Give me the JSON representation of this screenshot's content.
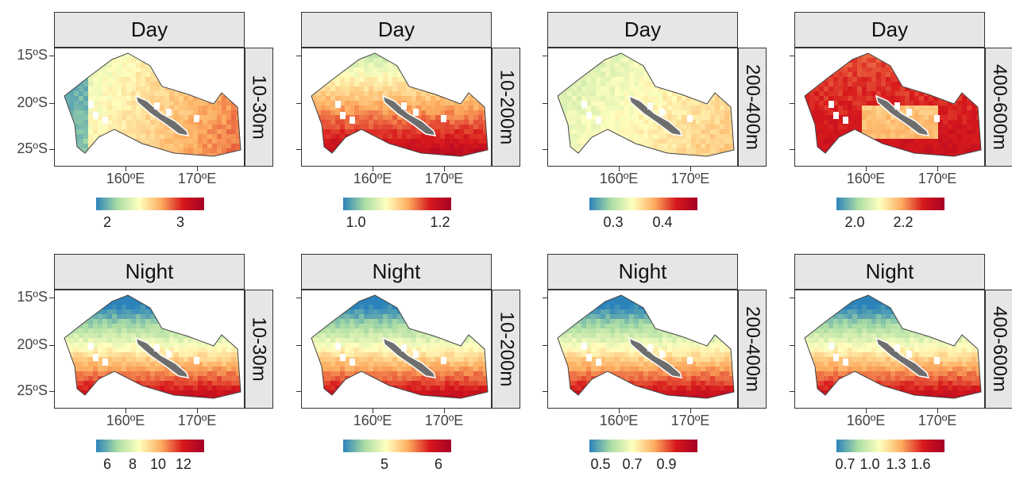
{
  "colormap": [
    "#2b83ba",
    "#abdda4",
    "#ffffbf",
    "#fdae61",
    "#d7191c",
    "#a50026"
  ],
  "land_color": "#6e6e6e",
  "y_axis_labels": [
    "15ºS",
    "20ºS",
    "25ºS"
  ],
  "x_axis_labels": [
    "160ºE",
    "170ºE"
  ],
  "panels": [
    {
      "period": "Day",
      "depth": "10-30m",
      "colorbar_ticks": [
        "2",
        "3"
      ],
      "pattern": "day-shallow"
    },
    {
      "period": "Day",
      "depth": "10-200m",
      "colorbar_ticks": [
        "1.0",
        "1.2"
      ],
      "pattern": "day-warm-south"
    },
    {
      "period": "Day",
      "depth": "200-400m",
      "colorbar_ticks": [
        "0.3",
        "0.4"
      ],
      "pattern": "day-mid"
    },
    {
      "period": "Day",
      "depth": "400-600m",
      "colorbar_ticks": [
        "2.0",
        "2.2"
      ],
      "pattern": "day-hot"
    },
    {
      "period": "Night",
      "depth": "10-30m",
      "colorbar_ticks": [
        "6",
        "8",
        "10",
        "12"
      ],
      "pattern": "night-south"
    },
    {
      "period": "Night",
      "depth": "10-200m",
      "colorbar_ticks": [
        "5",
        "6"
      ],
      "pattern": "night-south"
    },
    {
      "period": "Night",
      "depth": "200-400m",
      "colorbar_ticks": [
        "0.5",
        "0.7",
        "0.9"
      ],
      "pattern": "night-south"
    },
    {
      "period": "Night",
      "depth": "400-600m",
      "colorbar_ticks": [
        "0.7",
        "1.0",
        "1.3",
        "1.6"
      ],
      "pattern": "night-south"
    }
  ]
}
